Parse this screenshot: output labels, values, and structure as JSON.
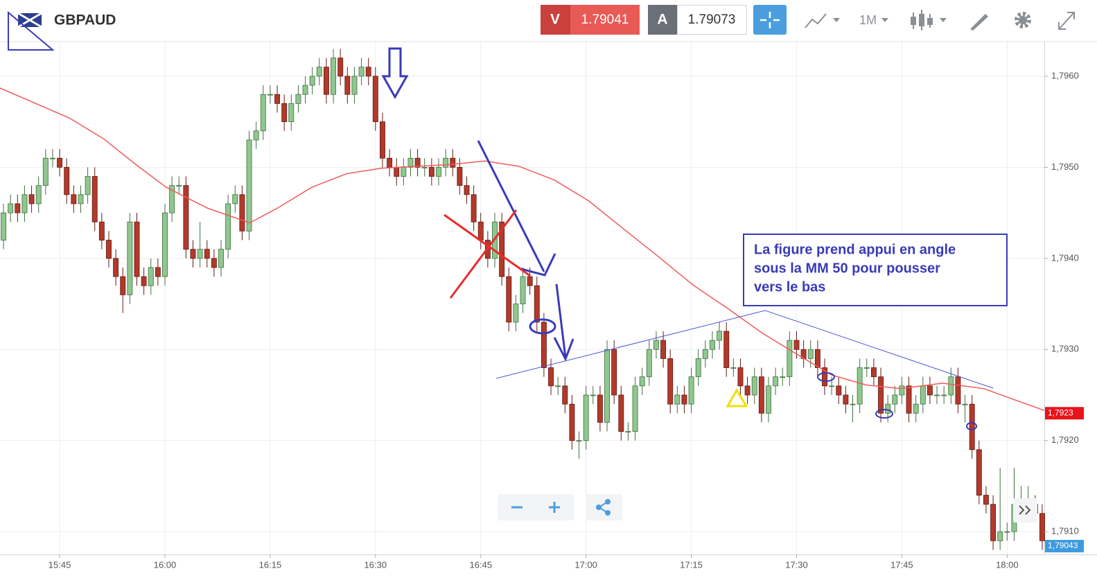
{
  "header": {
    "symbol": "GBPAUD",
    "sell_label": "V",
    "sell_price": 1.79041,
    "buy_label": "A",
    "buy_price": 1.79073,
    "timeframe": "1M"
  },
  "chart_data": {
    "type": "candlestick",
    "x": [
      937,
      938,
      939,
      940,
      941,
      942,
      943,
      944,
      945,
      946,
      947,
      948,
      949,
      950,
      951,
      952,
      953,
      954,
      955,
      956,
      957,
      958,
      959,
      960,
      961,
      962,
      963,
      964,
      965,
      966,
      967,
      968,
      969,
      970,
      971,
      972,
      973,
      974,
      975,
      976,
      977,
      978,
      979,
      980,
      981,
      982,
      983,
      984,
      985,
      986,
      987,
      988,
      989,
      990,
      991,
      992,
      993,
      994,
      995,
      996,
      997,
      998,
      999,
      1000,
      1001,
      1002,
      1003,
      1004,
      1005,
      1006,
      1007,
      1008,
      1009,
      1010,
      1011,
      1012,
      1013,
      1014,
      1015,
      1016,
      1017,
      1018,
      1019,
      1020,
      1021,
      1022,
      1023,
      1024,
      1025,
      1026,
      1027,
      1028,
      1029,
      1030,
      1031,
      1032,
      1033,
      1034,
      1035,
      1036,
      1037,
      1038,
      1039,
      1040,
      1041,
      1042,
      1043,
      1044,
      1045,
      1046,
      1047,
      1048,
      1049,
      1050,
      1051,
      1052,
      1053,
      1054,
      1055,
      1056,
      1057,
      1058,
      1059,
      1060,
      1061,
      1062,
      1063,
      1064,
      1065,
      1066,
      1067,
      1068,
      1069,
      1070,
      1071,
      1072,
      1073,
      1074,
      1075,
      1076,
      1077,
      1078,
      1079,
      1080,
      1081,
      1082,
      1083,
      1084,
      1085
    ],
    "open": [
      1.7942,
      1.7945,
      1.7946,
      1.7945,
      1.7947,
      1.7946,
      1.7948,
      1.7951,
      1.7951,
      1.795,
      1.7947,
      1.7946,
      1.7947,
      1.7949,
      1.7944,
      1.7942,
      1.794,
      1.7938,
      1.7936,
      1.7944,
      1.7938,
      1.7937,
      1.7939,
      1.7938,
      1.7945,
      1.7948,
      1.7948,
      1.7941,
      1.794,
      1.7941,
      1.794,
      1.7939,
      1.7941,
      1.7946,
      1.7947,
      1.7943,
      1.7953,
      1.7954,
      1.7958,
      1.7958,
      1.7957,
      1.7955,
      1.7957,
      1.7958,
      1.7959,
      1.796,
      1.7961,
      1.7958,
      1.7962,
      1.796,
      1.7958,
      1.796,
      1.7961,
      1.796,
      1.7955,
      1.7951,
      1.795,
      1.7949,
      1.795,
      1.7951,
      1.795,
      1.795,
      1.7949,
      1.795,
      1.7951,
      1.795,
      1.7948,
      1.7947,
      1.7944,
      1.7942,
      1.794,
      1.7944,
      1.7938,
      1.7933,
      1.7935,
      1.7938,
      1.7937,
      1.7933,
      1.7928,
      1.7926,
      1.7926,
      1.7924,
      1.792,
      1.792,
      1.7925,
      1.7925,
      1.7922,
      1.793,
      1.7925,
      1.7921,
      1.7921,
      1.7926,
      1.7927,
      1.793,
      1.7931,
      1.7929,
      1.7924,
      1.7925,
      1.7924,
      1.7927,
      1.7929,
      1.793,
      1.7931,
      1.7932,
      1.7928,
      1.7928,
      1.7926,
      1.7925,
      1.7927,
      1.7923,
      1.7926,
      1.7927,
      1.7927,
      1.7931,
      1.793,
      1.7929,
      1.793,
      1.7928,
      1.7926,
      1.7926,
      1.7925,
      1.7924,
      1.7924,
      1.7928,
      1.7928,
      1.7927,
      1.7923,
      1.7924,
      1.7925,
      1.7926,
      1.7923,
      1.7924,
      1.7926,
      1.7925,
      1.7925,
      1.7925,
      1.7927,
      1.7924,
      1.7924,
      1.7919,
      1.7914,
      1.7913,
      1.7909,
      1.791,
      1.791,
      1.7913,
      1.7913,
      1.7913,
      1.7912
    ],
    "high": [
      1.7946,
      1.7947,
      1.7947,
      1.7948,
      1.7948,
      1.7949,
      1.7952,
      1.7952,
      1.7952,
      1.7951,
      1.7948,
      1.7948,
      1.795,
      1.795,
      1.7945,
      1.7943,
      1.7941,
      1.7939,
      1.7945,
      1.7945,
      1.7939,
      1.794,
      1.794,
      1.7946,
      1.7949,
      1.7949,
      1.7949,
      1.7942,
      1.7944,
      1.7942,
      1.7941,
      1.7942,
      1.7947,
      1.7948,
      1.7948,
      1.7954,
      1.7955,
      1.7959,
      1.7959,
      1.7959,
      1.7958,
      1.7958,
      1.7959,
      1.796,
      1.7961,
      1.7962,
      1.7962,
      1.7963,
      1.7963,
      1.7961,
      1.7961,
      1.7962,
      1.7962,
      1.7961,
      1.7956,
      1.7952,
      1.7951,
      1.7951,
      1.7952,
      1.7952,
      1.7951,
      1.7951,
      1.7951,
      1.7952,
      1.7952,
      1.7951,
      1.7949,
      1.7948,
      1.7945,
      1.7943,
      1.7945,
      1.7945,
      1.7939,
      1.7936,
      1.7939,
      1.7939,
      1.7938,
      1.7934,
      1.7929,
      1.7927,
      1.7927,
      1.7925,
      1.7921,
      1.7926,
      1.7926,
      1.7926,
      1.7931,
      1.7931,
      1.7926,
      1.7922,
      1.7927,
      1.7928,
      1.7931,
      1.7932,
      1.7932,
      1.793,
      1.7926,
      1.7926,
      1.7928,
      1.793,
      1.7931,
      1.7932,
      1.7933,
      1.7933,
      1.7929,
      1.7929,
      1.7927,
      1.7928,
      1.7928,
      1.7927,
      1.7928,
      1.7928,
      1.7932,
      1.7932,
      1.7931,
      1.7931,
      1.7931,
      1.7929,
      1.7927,
      1.7927,
      1.7926,
      1.7925,
      1.7929,
      1.7929,
      1.7929,
      1.7928,
      1.7925,
      1.7926,
      1.7927,
      1.7927,
      1.7925,
      1.7927,
      1.7927,
      1.7926,
      1.7926,
      1.7928,
      1.7928,
      1.7925,
      1.7925,
      1.792,
      1.7915,
      1.7914,
      1.7917,
      1.7911,
      1.7917,
      1.7915,
      1.7915,
      1.7914,
      1.7913
    ],
    "low": [
      1.7941,
      1.7944,
      1.7944,
      1.7944,
      1.7945,
      1.7945,
      1.7947,
      1.795,
      1.7949,
      1.7946,
      1.7945,
      1.7945,
      1.7946,
      1.7943,
      1.7941,
      1.7939,
      1.7937,
      1.7934,
      1.7935,
      1.7937,
      1.7936,
      1.7936,
      1.7937,
      1.7937,
      1.7944,
      1.7947,
      1.794,
      1.7939,
      1.7939,
      1.7939,
      1.7938,
      1.7938,
      1.794,
      1.7945,
      1.7942,
      1.7942,
      1.7952,
      1.7953,
      1.7957,
      1.7956,
      1.7954,
      1.7954,
      1.7956,
      1.7957,
      1.7958,
      1.7959,
      1.7957,
      1.7957,
      1.7959,
      1.7957,
      1.7957,
      1.7959,
      1.7959,
      1.7954,
      1.795,
      1.7949,
      1.7948,
      1.7948,
      1.7949,
      1.7949,
      1.7949,
      1.7948,
      1.7948,
      1.7949,
      1.7949,
      1.7947,
      1.7946,
      1.7943,
      1.7941,
      1.7939,
      1.7939,
      1.7937,
      1.7932,
      1.7932,
      1.7934,
      1.7936,
      1.7932,
      1.7927,
      1.7925,
      1.7925,
      1.7923,
      1.7919,
      1.7918,
      1.7919,
      1.7924,
      1.7921,
      1.7921,
      1.7924,
      1.792,
      1.792,
      1.792,
      1.7925,
      1.7926,
      1.7929,
      1.7928,
      1.7923,
      1.7923,
      1.7923,
      1.7923,
      1.7926,
      1.7928,
      1.7929,
      1.793,
      1.7927,
      1.7927,
      1.7925,
      1.7924,
      1.7924,
      1.7922,
      1.7922,
      1.7925,
      1.7926,
      1.7926,
      1.7929,
      1.7928,
      1.7928,
      1.7927,
      1.7925,
      1.7925,
      1.7924,
      1.7923,
      1.7922,
      1.7923,
      1.7927,
      1.7926,
      1.7922,
      1.7922,
      1.7923,
      1.7924,
      1.7922,
      1.7922,
      1.7923,
      1.7924,
      1.7924,
      1.7924,
      1.7924,
      1.7923,
      1.7922,
      1.7918,
      1.7913,
      1.7912,
      1.7908,
      1.7908,
      1.7909,
      1.7909,
      1.7912,
      1.7912,
      1.7911,
      1.7908
    ],
    "close": [
      1.7945,
      1.7946,
      1.7945,
      1.7947,
      1.7946,
      1.7948,
      1.7951,
      1.7951,
      1.795,
      1.7947,
      1.7946,
      1.7947,
      1.7949,
      1.7944,
      1.7942,
      1.794,
      1.7938,
      1.7936,
      1.7944,
      1.7938,
      1.7937,
      1.7939,
      1.7938,
      1.7945,
      1.7948,
      1.7948,
      1.7941,
      1.794,
      1.7941,
      1.794,
      1.7939,
      1.7941,
      1.7946,
      1.7947,
      1.7943,
      1.7953,
      1.7954,
      1.7958,
      1.7958,
      1.7957,
      1.7955,
      1.7957,
      1.7958,
      1.7959,
      1.796,
      1.7961,
      1.7958,
      1.7962,
      1.796,
      1.7958,
      1.796,
      1.7961,
      1.796,
      1.7955,
      1.7951,
      1.795,
      1.7949,
      1.795,
      1.7951,
      1.795,
      1.795,
      1.7949,
      1.795,
      1.7951,
      1.795,
      1.7948,
      1.7947,
      1.7944,
      1.7942,
      1.794,
      1.7944,
      1.7938,
      1.7933,
      1.7935,
      1.7938,
      1.7937,
      1.7933,
      1.7928,
      1.7926,
      1.7926,
      1.7924,
      1.792,
      1.792,
      1.7925,
      1.7925,
      1.7922,
      1.793,
      1.7925,
      1.7921,
      1.7921,
      1.7926,
      1.7927,
      1.793,
      1.7931,
      1.7929,
      1.7924,
      1.7925,
      1.7924,
      1.7927,
      1.7929,
      1.793,
      1.7931,
      1.7932,
      1.7928,
      1.7928,
      1.7926,
      1.7925,
      1.7927,
      1.7923,
      1.7926,
      1.7927,
      1.7927,
      1.7931,
      1.793,
      1.7929,
      1.793,
      1.7928,
      1.7926,
      1.7926,
      1.7925,
      1.7924,
      1.7924,
      1.7928,
      1.7928,
      1.7927,
      1.7923,
      1.7924,
      1.7925,
      1.7926,
      1.7923,
      1.7924,
      1.7926,
      1.7925,
      1.7925,
      1.7925,
      1.7927,
      1.7924,
      1.7924,
      1.7919,
      1.7914,
      1.7913,
      1.7909,
      1.791,
      1.791,
      1.7913,
      1.7913,
      1.7913,
      1.7912,
      1.7909
    ],
    "up_color": "#8fc78f",
    "down_color": "#b3392b",
    "moving_average": {
      "color": "#f05a5a",
      "x": [
        936.5,
        946.4,
        951.3,
        956.2,
        960.2,
        966.1,
        972.1,
        976,
        980.9,
        985.9,
        990.8,
        1000.7,
        1005.6,
        1010.5,
        1015.5,
        1020.4,
        1025.4,
        1030.3,
        1035.2,
        1040.2,
        1045.1,
        1050,
        1055,
        1059.9,
        1064.8,
        1070.8,
        1076.7,
        1080.6,
        1085.3
      ],
      "values": [
        1.79587,
        1.79554,
        1.79531,
        1.79501,
        1.79478,
        1.79455,
        1.79439,
        1.79455,
        1.79478,
        1.79493,
        1.79499,
        1.79503,
        1.79507,
        1.79501,
        1.79486,
        1.79463,
        1.79432,
        1.79402,
        1.79371,
        1.79345,
        1.79318,
        1.79295,
        1.79272,
        1.79261,
        1.79257,
        1.79263,
        1.79257,
        1.79246,
        1.79233
      ]
    },
    "xlim": [
      936.5,
      1085.3
    ],
    "ylim": [
      1.79075,
      1.79638
    ],
    "xticks": [
      {
        "value": 945,
        "label": "15:45"
      },
      {
        "value": 960,
        "label": "16:00"
      },
      {
        "value": 975,
        "label": "16:15"
      },
      {
        "value": 990,
        "label": "16:30"
      },
      {
        "value": 1005,
        "label": "16:45"
      },
      {
        "value": 1020,
        "label": "17:00"
      },
      {
        "value": 1035,
        "label": "17:15"
      },
      {
        "value": 1050,
        "label": "17:30"
      },
      {
        "value": 1065,
        "label": "17:45"
      },
      {
        "value": 1080,
        "label": "18:00"
      }
    ],
    "yticks": [
      {
        "value": 1.796,
        "label": "1,7960"
      },
      {
        "value": 1.795,
        "label": "1,7950"
      },
      {
        "value": 1.794,
        "label": "1,7940"
      },
      {
        "value": 1.793,
        "label": "1,7930"
      },
      {
        "value": 1.792,
        "label": "1,7920"
      },
      {
        "value": 1.791,
        "label": "1,7910"
      }
    ],
    "grid": true,
    "price_tags": [
      {
        "value": 1.7923,
        "label": "1,7923",
        "color": "#e8141a"
      },
      {
        "value": 1.79043,
        "label": "1,79043",
        "color": "#3d9be0"
      }
    ],
    "annotation": {
      "lines": [
        "La figure prend appui en angle",
        "sous la MM 50 pour pousser",
        "vers le bas"
      ]
    }
  }
}
